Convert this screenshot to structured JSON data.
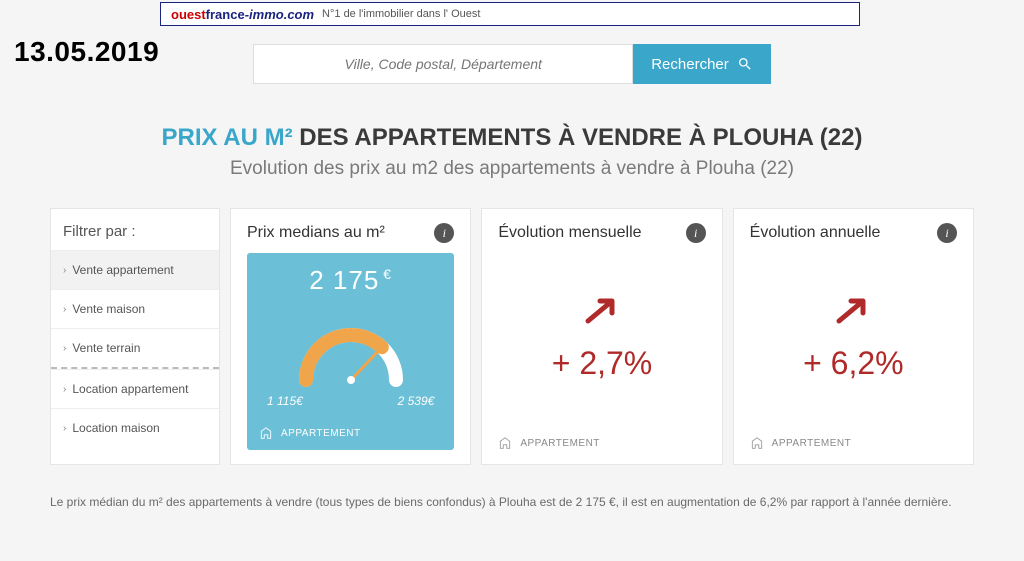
{
  "banner": {
    "brand_ouest": "ouest",
    "brand_france": "france",
    "brand_immo": "-immo.com",
    "tagline": "N°1 de l'immobilier dans l' Ouest"
  },
  "date_stamp": "13.05.2019",
  "search": {
    "placeholder": "Ville, Code postal, Département",
    "button": "Rechercher"
  },
  "headline": {
    "accent": "PRIX AU M²",
    "rest": "DES APPARTEMENTS À VENDRE À PLOUHA (22)",
    "sub": "Evolution des prix au m2 des appartements à vendre à Plouha (22)"
  },
  "filter": {
    "head": "Filtrer par :",
    "items_a": [
      "Vente appartement",
      "Vente maison",
      "Vente terrain"
    ],
    "items_b": [
      "Location appartement",
      "Location maison"
    ]
  },
  "cards": {
    "median": {
      "title": "Prix medians au m²",
      "price": "2 175",
      "currency": "€",
      "min": "1 115€",
      "max": "2 539€",
      "type_label": "APPARTEMENT",
      "gauge": {
        "bg_color": "#6bbfd6",
        "arc_bg": "#ffffff",
        "arc_fg": "#f0a54a",
        "needle_color": "#f0a54a",
        "fraction": 0.74
      }
    },
    "monthly": {
      "title": "Évolution mensuelle",
      "value": "+ 2,7%",
      "type_label": "APPARTEMENT",
      "color": "#b02a2a"
    },
    "yearly": {
      "title": "Évolution annuelle",
      "value": "+ 6,2%",
      "type_label": "APPARTEMENT",
      "color": "#b02a2a"
    }
  },
  "bottom_note": "Le prix médian du m² des appartements à vendre (tous types de biens confondus) à Plouha est de 2 175 €, il est en augmentation de 6,2% par rapport à l'année dernière."
}
